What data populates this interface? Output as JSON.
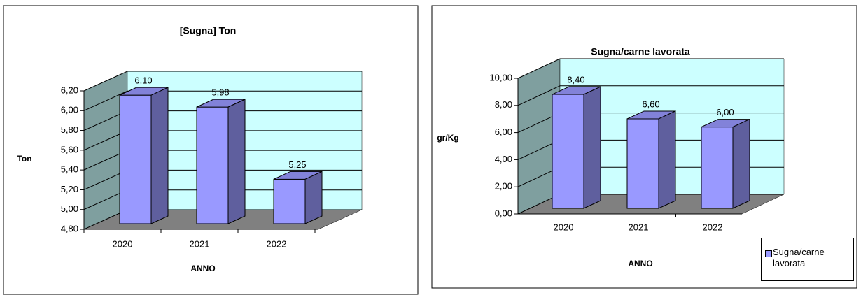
{
  "chart_data": [
    {
      "type": "bar3d",
      "title": "[Sugna] Ton",
      "ylabel": "Ton",
      "xlabel": "ANNO",
      "categories": [
        "2020",
        "2021",
        "2022"
      ],
      "values": [
        6.1,
        5.98,
        5.25
      ],
      "value_labels": [
        "6,10",
        "5,98",
        "5,25"
      ],
      "color": "#9999ff",
      "ylim": [
        4.8,
        6.2
      ],
      "yticks": [
        {
          "value": 4.8,
          "label": "4,80"
        },
        {
          "value": 5.0,
          "label": "5,00"
        },
        {
          "value": 5.2,
          "label": "5,20"
        },
        {
          "value": 5.4,
          "label": "5,40"
        },
        {
          "value": 5.6,
          "label": "5,60"
        },
        {
          "value": 5.8,
          "label": "5,80"
        },
        {
          "value": 6.0,
          "label": "6,00"
        },
        {
          "value": 6.2,
          "label": "6,20"
        }
      ],
      "grid": true
    },
    {
      "type": "bar3d",
      "title": "Sugna/carne lavorata",
      "ylabel": "gr/Kg",
      "xlabel": "ANNO",
      "categories": [
        "2020",
        "2021",
        "2022"
      ],
      "series": [
        {
          "name": "Sugna/carne lavorata",
          "color": "#9999ff",
          "values": [
            8.4,
            6.6,
            6.0
          ],
          "value_labels": [
            "8,40",
            "6,60",
            "6,00"
          ]
        }
      ],
      "ylim": [
        0,
        10
      ],
      "yticks": [
        {
          "value": 0,
          "label": "0,00"
        },
        {
          "value": 2,
          "label": "2,00"
        },
        {
          "value": 4,
          "label": "4,00"
        },
        {
          "value": 6,
          "label": "6,00"
        },
        {
          "value": 8,
          "label": "8,00"
        },
        {
          "value": 10,
          "label": "10,00"
        }
      ],
      "grid": true,
      "legend": "bottom-right"
    }
  ]
}
